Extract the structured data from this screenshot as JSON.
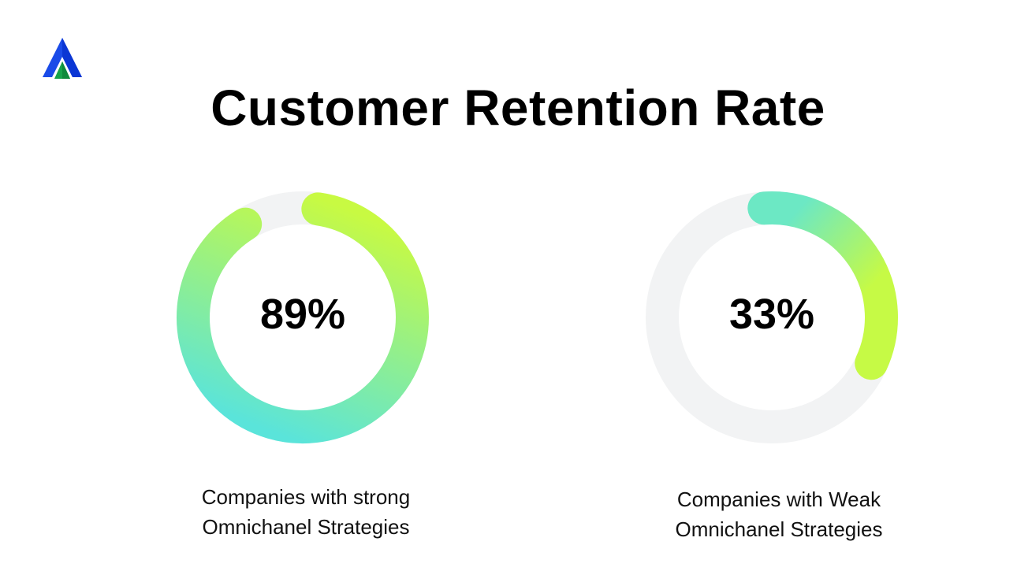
{
  "title": "Customer Retention Rate",
  "chart_data": [
    {
      "type": "pie",
      "variant": "donut",
      "value": 89,
      "unit": "%",
      "display": "89%",
      "label_line1": "Companies with strong",
      "label_line2": "Omnichanel Strategies",
      "gradient": [
        "#c8fa42",
        "#5ae4da"
      ],
      "track_color": "#f2f3f4"
    },
    {
      "type": "pie",
      "variant": "donut",
      "value": 33,
      "unit": "%",
      "display": "33%",
      "label_line1": "Companies with Weak",
      "label_line2": "Omnichanel Strategies",
      "gradient": [
        "#6ce8c4",
        "#c6fa45"
      ],
      "track_color": "#f2f3f4"
    }
  ],
  "colors": {
    "logo_blue": "#1a4be8",
    "logo_green": "#16a34a"
  }
}
